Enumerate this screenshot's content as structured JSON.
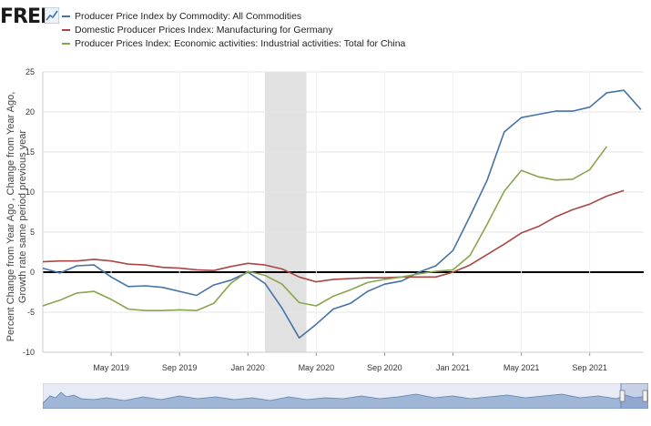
{
  "header": {
    "logo_text": "FRED"
  },
  "chart_data": {
    "type": "line",
    "title": "",
    "ylabel": "Percent Change from Year Ago , Change from Year Ago, Growth rate same period previous year",
    "ylim": [
      -10,
      25
    ],
    "yticks": [
      "25",
      "20",
      "15",
      "10",
      "5",
      "0",
      "-5",
      "-10"
    ],
    "xticks": [
      {
        "label": "May 2019",
        "x": "2019-05"
      },
      {
        "label": "Sep 2019",
        "x": "2019-09"
      },
      {
        "label": "Jan 2020",
        "x": "2020-01"
      },
      {
        "label": "May 2020",
        "x": "2020-05"
      },
      {
        "label": "Sep 2020",
        "x": "2020-09"
      },
      {
        "label": "Jan 2021",
        "x": "2021-01"
      },
      {
        "label": "May 2021",
        "x": "2021-05"
      },
      {
        "label": "Sep 2021",
        "x": "2021-09"
      }
    ],
    "xlim": [
      "2019-01",
      "2021-12"
    ],
    "recession": {
      "start": "2020-02",
      "end": "2020-04"
    },
    "grid": true,
    "legend_position": "top-left",
    "series": [
      {
        "name": "Producer Price Index by Commodity: All Commodities",
        "color": "#4572a7",
        "x": [
          "2019-01",
          "2019-02",
          "2019-03",
          "2019-04",
          "2019-05",
          "2019-06",
          "2019-07",
          "2019-08",
          "2019-09",
          "2019-10",
          "2019-11",
          "2019-12",
          "2020-01",
          "2020-02",
          "2020-03",
          "2020-04",
          "2020-05",
          "2020-06",
          "2020-07",
          "2020-08",
          "2020-09",
          "2020-10",
          "2020-11",
          "2020-12",
          "2021-01",
          "2021-02",
          "2021-03",
          "2021-04",
          "2021-05",
          "2021-06",
          "2021-07",
          "2021-08",
          "2021-09",
          "2021-10",
          "2021-11",
          "2021-12"
        ],
        "values": [
          0.5,
          -0.1,
          0.8,
          0.9,
          -0.6,
          -1.8,
          -1.7,
          -1.9,
          -2.4,
          -2.9,
          -1.6,
          -1.0,
          0.0,
          -1.4,
          -4.5,
          -8.2,
          -6.5,
          -4.6,
          -3.9,
          -2.4,
          -1.5,
          -1.1,
          0.0,
          0.8,
          2.7,
          7.0,
          11.5,
          17.5,
          19.3,
          19.7,
          20.1,
          20.1,
          20.6,
          22.4,
          22.7,
          20.3
        ]
      },
      {
        "name": "Domestic Producer Prices Index: Manufacturing for Germany",
        "color": "#aa4643",
        "x": [
          "2019-01",
          "2019-02",
          "2019-03",
          "2019-04",
          "2019-05",
          "2019-06",
          "2019-07",
          "2019-08",
          "2019-09",
          "2019-10",
          "2019-11",
          "2019-12",
          "2020-01",
          "2020-02",
          "2020-03",
          "2020-04",
          "2020-05",
          "2020-06",
          "2020-07",
          "2020-08",
          "2020-09",
          "2020-10",
          "2020-11",
          "2020-12",
          "2021-01",
          "2021-02",
          "2021-03",
          "2021-04",
          "2021-05",
          "2021-06",
          "2021-07",
          "2021-08",
          "2021-09",
          "2021-10",
          "2021-11"
        ],
        "values": [
          1.3,
          1.4,
          1.4,
          1.6,
          1.4,
          1.0,
          0.9,
          0.6,
          0.5,
          0.3,
          0.2,
          0.7,
          1.1,
          0.9,
          0.4,
          -0.6,
          -1.2,
          -0.9,
          -0.8,
          -0.7,
          -0.7,
          -0.6,
          -0.6,
          -0.6,
          0.0,
          0.9,
          2.2,
          3.5,
          4.9,
          5.7,
          6.9,
          7.8,
          8.5,
          9.5,
          10.2
        ]
      },
      {
        "name": "Producer Prices Index: Economic activities: Industrial activities: Total for China",
        "color": "#89a54e",
        "x": [
          "2019-01",
          "2019-02",
          "2019-03",
          "2019-04",
          "2019-05",
          "2019-06",
          "2019-07",
          "2019-08",
          "2019-09",
          "2019-10",
          "2019-11",
          "2019-12",
          "2020-01",
          "2020-02",
          "2020-03",
          "2020-04",
          "2020-05",
          "2020-06",
          "2020-07",
          "2020-08",
          "2020-09",
          "2020-10",
          "2020-11",
          "2020-12",
          "2021-01",
          "2021-02",
          "2021-03",
          "2021-04",
          "2021-05",
          "2021-06",
          "2021-07",
          "2021-08",
          "2021-09",
          "2021-10"
        ],
        "values": [
          -4.2,
          -3.5,
          -2.6,
          -2.4,
          -3.4,
          -4.6,
          -4.8,
          -4.8,
          -4.7,
          -4.8,
          -3.9,
          -1.4,
          0.1,
          -0.4,
          -1.5,
          -3.8,
          -4.2,
          -3.0,
          -2.2,
          -1.3,
          -0.9,
          -0.6,
          -0.2,
          0.1,
          0.3,
          2.1,
          6.0,
          10.1,
          12.7,
          11.9,
          11.5,
          11.6,
          12.8,
          15.7
        ]
      }
    ]
  }
}
